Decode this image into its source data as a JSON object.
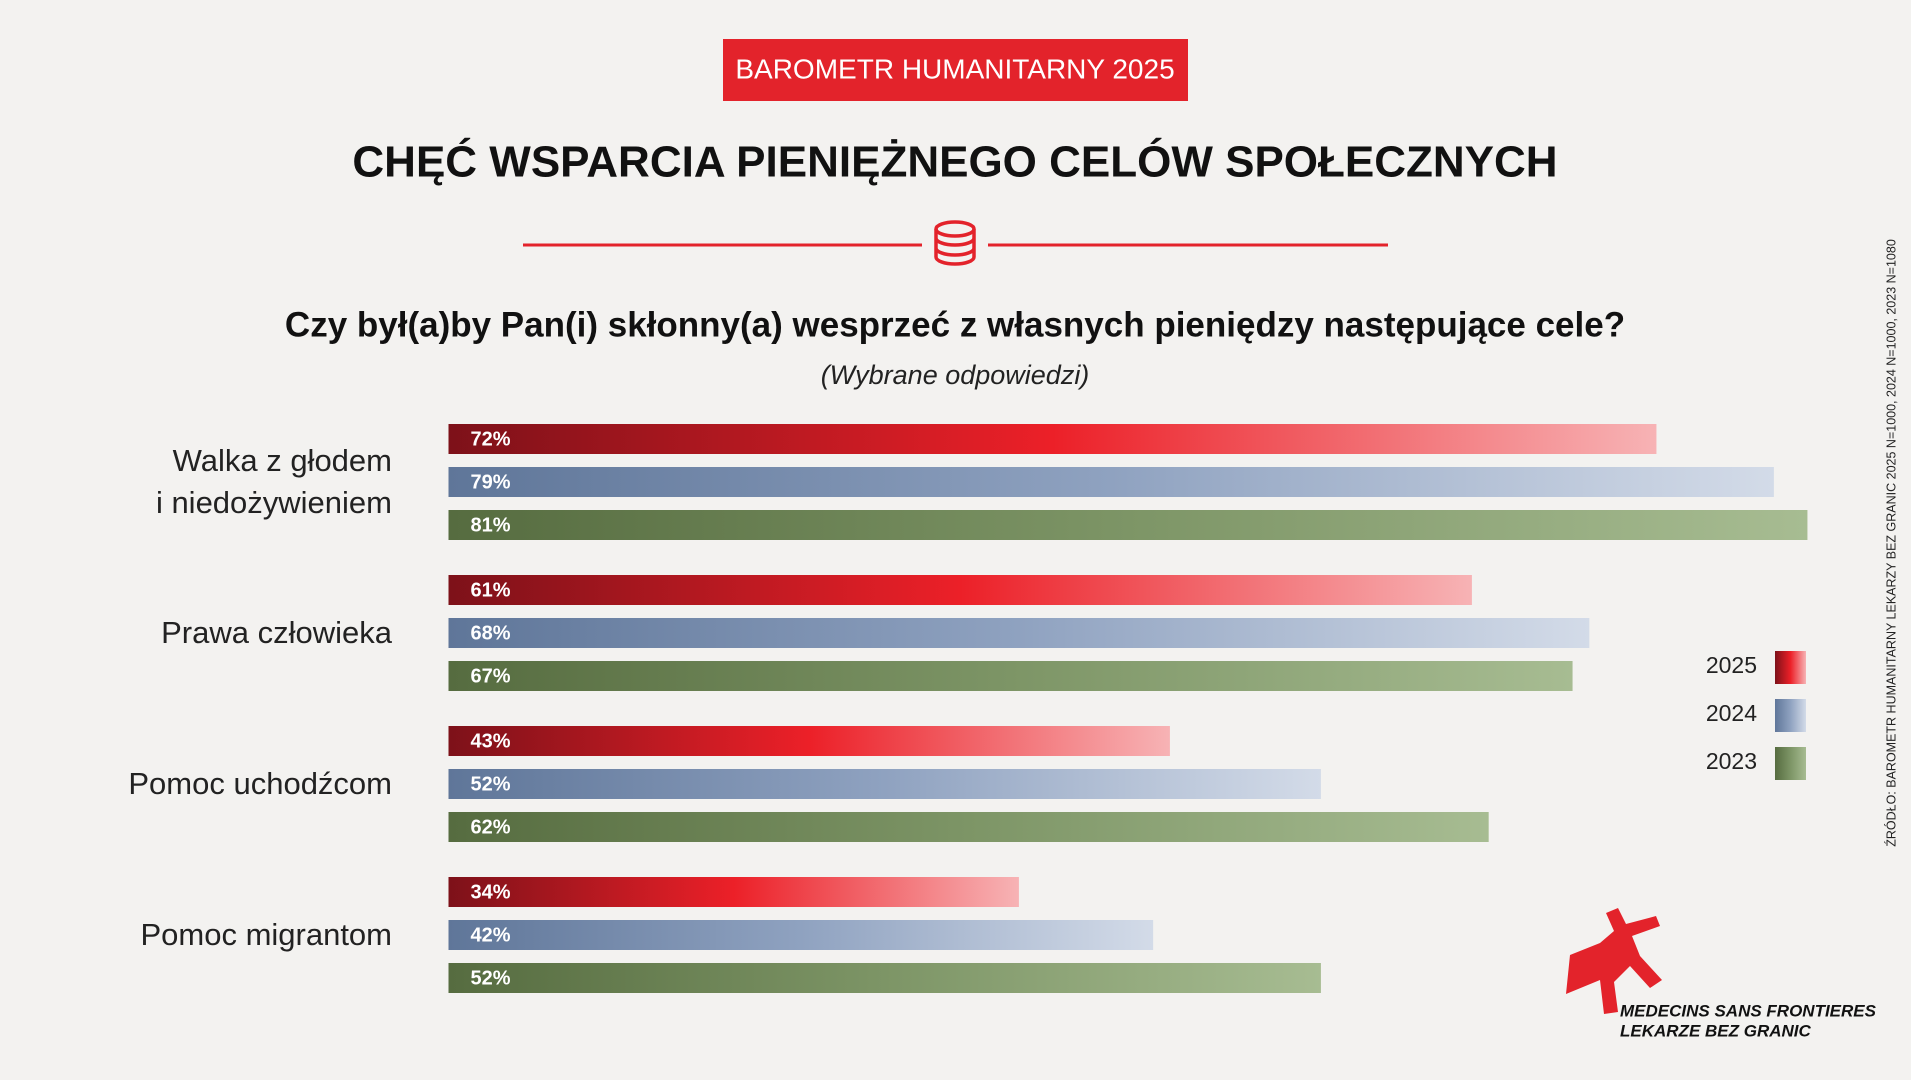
{
  "chart_data": {
    "type": "bar",
    "orientation": "horizontal",
    "badge": "BAROMETR HUMANITARNY 2025",
    "title": "CHĘĆ WSPARCIA PIENIĘŻNEGO CELÓW SPOŁECZNYCH",
    "question": "Czy był(a)by Pan(i) skłonny(a) wesprzeć z własnych pieniędzy następujące cele?",
    "note": "(Wybrane odpowiedzi)",
    "source": "ŹRÓDŁO: BAROMETR HUMANITARNY LEKARZY BEZ GRANIC 2025 N=1000, 2024 N=1000, 2023 N=1080",
    "categories": [
      "Walka z głodem\ni niedożywieniem",
      "Prawa człowieka",
      "Pomoc uchodźcom",
      "Pomoc migrantom"
    ],
    "series": [
      {
        "name": "2025",
        "color": "#e3232b",
        "gradient": [
          "#7d1119",
          "#ec2028",
          "#f7b3b5"
        ],
        "values": [
          72,
          61,
          43,
          34
        ],
        "value_labels": [
          "72%",
          "61%",
          "43%",
          "34%"
        ]
      },
      {
        "name": "2024",
        "color": "#7f93b5",
        "gradient": [
          "#5f7699",
          "#8fa2c0",
          "#d3dbe8"
        ],
        "values": [
          79,
          68,
          52,
          42
        ],
        "value_labels": [
          "79%",
          "68%",
          "52%",
          "42%"
        ]
      },
      {
        "name": "2023",
        "color": "#6f8a5a",
        "gradient": [
          "#566c40",
          "#7d9566",
          "#a7bc92"
        ],
        "values": [
          81,
          67,
          62,
          52
        ],
        "value_labels": [
          "81%",
          "67%",
          "62%",
          "52%"
        ]
      }
    ],
    "xlim": [
      0,
      100
    ]
  },
  "logo": {
    "line1": "MEDECINS SANS FRONTIERES",
    "line2": "LEKARZE BEZ GRANIC"
  }
}
